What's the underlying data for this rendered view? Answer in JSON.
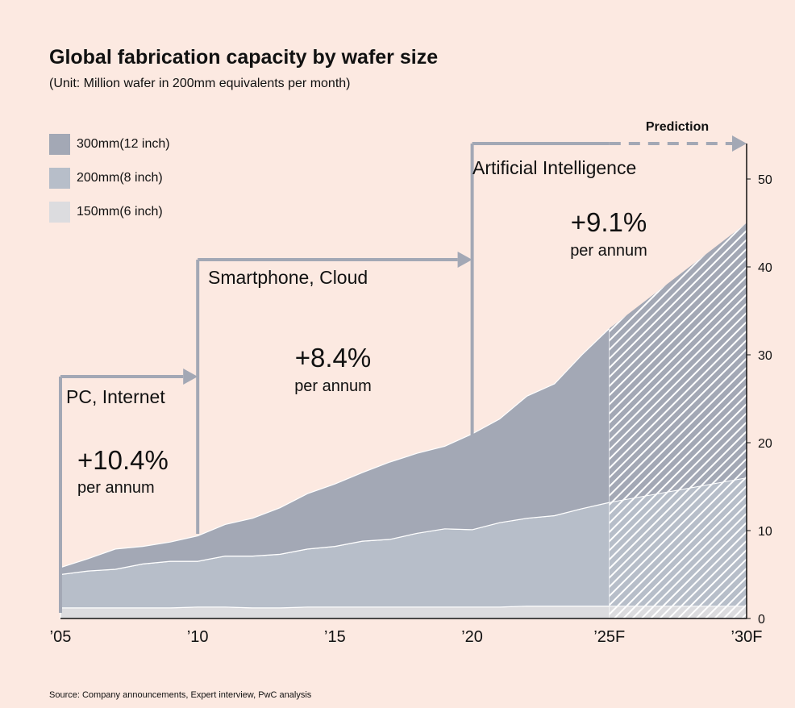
{
  "title": "Global fabrication capacity by wafer size",
  "subtitle": "(Unit: Million wafer in 200mm equivalents per month)",
  "source": "Source: Company announcements, Expert interview, PwC analysis",
  "colors": {
    "background": "#fce9e1",
    "wafer_300mm": "#a3a8b5",
    "wafer_200mm": "#b7bec9",
    "wafer_150mm": "#dcdcdf",
    "arrow": "#a3a8b5"
  },
  "legend": [
    {
      "label": "300mm(12 inch)",
      "color": "#a3a8b5"
    },
    {
      "label": "200mm(8 inch)",
      "color": "#b7bec9"
    },
    {
      "label": "150mm(6 inch)",
      "color": "#dcdcdf"
    }
  ],
  "eras": [
    {
      "name": "PC, Internet",
      "growth": "+10.4%",
      "unit": "per annum"
    },
    {
      "name": "Smartphone, Cloud",
      "growth": "+8.4%",
      "unit": "per annum"
    },
    {
      "name": "Artificial Intelligence",
      "growth": "+9.1%",
      "unit": "per annum"
    }
  ],
  "prediction_label": "Prediction",
  "chart_data": {
    "type": "area",
    "stacked": true,
    "x": [
      2005,
      2006,
      2007,
      2008,
      2009,
      2010,
      2011,
      2012,
      2013,
      2014,
      2015,
      2016,
      2017,
      2018,
      2019,
      2020,
      2021,
      2022,
      2023,
      2024,
      2025,
      2030
    ],
    "x_tick_values": [
      2005,
      2010,
      2015,
      2020,
      2025,
      2030
    ],
    "x_tick_labels": [
      "’05",
      "’10",
      "’15",
      "’20",
      "’25F",
      "’30F"
    ],
    "forecast_from": 2025,
    "series": [
      {
        "name": "150mm(6 inch)",
        "values": [
          1.2,
          1.2,
          1.2,
          1.2,
          1.2,
          1.3,
          1.3,
          1.2,
          1.2,
          1.3,
          1.3,
          1.3,
          1.3,
          1.3,
          1.3,
          1.3,
          1.3,
          1.4,
          1.4,
          1.4,
          1.4,
          1.4
        ]
      },
      {
        "name": "200mm(8 inch)",
        "values": [
          3.8,
          4.2,
          4.4,
          5.0,
          5.3,
          5.2,
          5.8,
          5.9,
          6.1,
          6.6,
          6.9,
          7.5,
          7.7,
          8.4,
          8.9,
          8.8,
          9.6,
          10.0,
          10.3,
          11.1,
          11.8,
          14.6
        ]
      },
      {
        "name": "300mm(12 inch)",
        "values": [
          0.8,
          1.4,
          2.3,
          2.0,
          2.2,
          2.9,
          3.6,
          4.3,
          5.3,
          6.3,
          7.1,
          7.8,
          8.8,
          9.1,
          9.4,
          10.9,
          11.8,
          13.9,
          15.0,
          17.5,
          19.8,
          29.0
        ]
      }
    ],
    "ylim": [
      0,
      54
    ],
    "y_ticks": [
      0,
      10,
      20,
      30,
      40,
      50
    ],
    "y_axis_position": "right"
  }
}
